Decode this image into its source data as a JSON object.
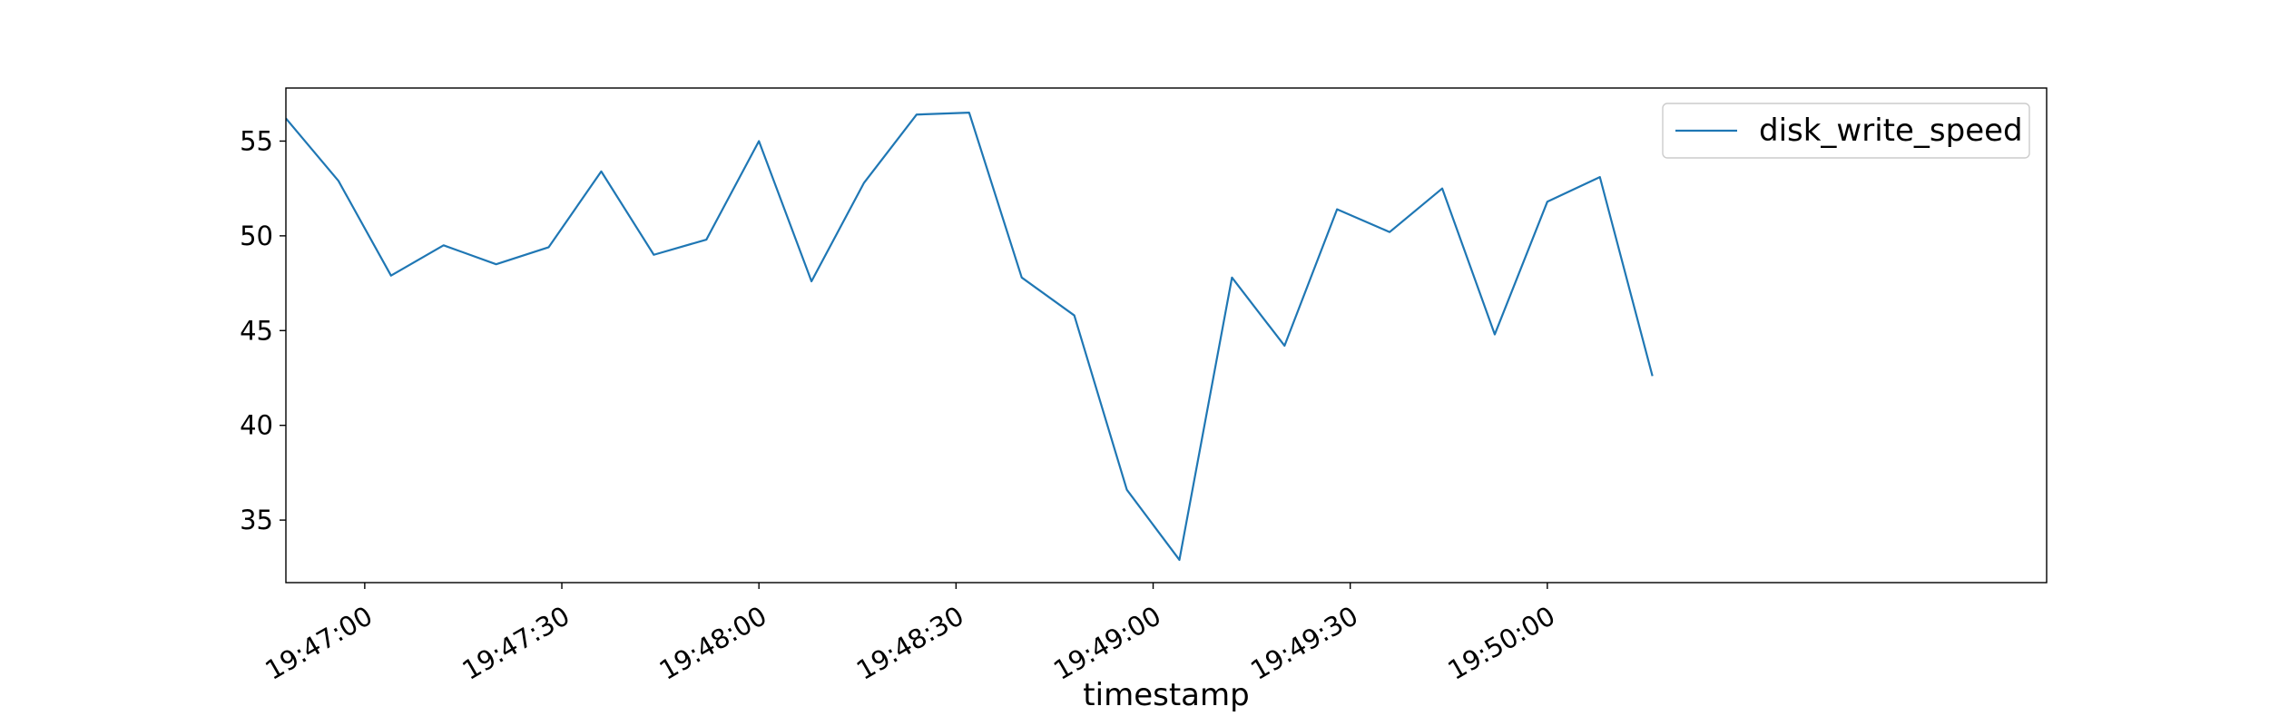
{
  "chart_data": {
    "type": "line",
    "xlabel": "timestamp",
    "ylabel": "",
    "x_range": [
      "19:46:48",
      "19:51:16"
    ],
    "ylim": [
      31.7,
      57.8
    ],
    "x_ticks": [
      "19:47:00",
      "19:47:30",
      "19:48:00",
      "19:48:30",
      "19:49:00",
      "19:49:30",
      "19:50:00"
    ],
    "y_ticks": [
      35,
      40,
      45,
      50,
      55
    ],
    "grid": false,
    "legend_position": "top-right",
    "series": [
      {
        "name": "disk_write_speed",
        "color": "#1f77b4",
        "x": [
          "19:46:48",
          "19:46:56",
          "19:47:04",
          "19:47:12",
          "19:47:20",
          "19:47:28",
          "19:47:36",
          "19:47:44",
          "19:47:52",
          "19:48:00",
          "19:48:08",
          "19:48:16",
          "19:48:24",
          "19:48:32",
          "19:48:40",
          "19:48:48",
          "19:48:56",
          "19:49:04",
          "19:49:12",
          "19:49:20",
          "19:49:28",
          "19:49:36",
          "19:49:44",
          "19:49:52",
          "19:50:00",
          "19:50:08",
          "19:50:16"
        ],
        "values": [
          56.2,
          52.9,
          47.9,
          49.5,
          48.5,
          49.4,
          53.4,
          49.0,
          49.8,
          55.0,
          47.6,
          52.8,
          56.4,
          56.5,
          47.8,
          45.8,
          36.6,
          32.9,
          47.8,
          44.2,
          51.4,
          50.2,
          52.5,
          44.8,
          51.8,
          53.1,
          42.6
        ]
      }
    ]
  }
}
